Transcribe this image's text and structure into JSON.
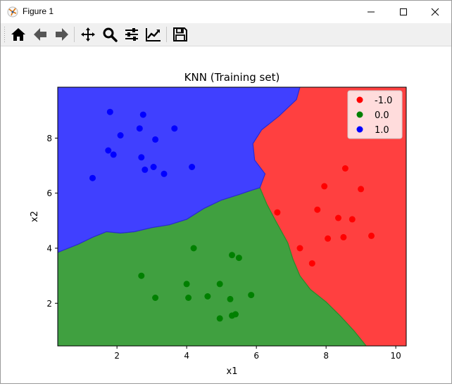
{
  "window": {
    "title": "Figure 1",
    "minimize_icon": "minimize-icon",
    "maximize_icon": "maximize-icon",
    "close_icon": "close-icon"
  },
  "toolbar": {
    "tools": [
      {
        "name": "home-icon",
        "tooltip": "Reset original view"
      },
      {
        "name": "back-arrow-icon",
        "tooltip": "Back"
      },
      {
        "name": "forward-arrow-icon",
        "tooltip": "Forward"
      },
      {
        "name": "pan-icon",
        "tooltip": "Pan"
      },
      {
        "name": "zoom-icon",
        "tooltip": "Zoom"
      },
      {
        "name": "subplots-icon",
        "tooltip": "Configure subplots"
      },
      {
        "name": "edit-curves-icon",
        "tooltip": "Edit axis"
      },
      {
        "name": "save-icon",
        "tooltip": "Save"
      }
    ]
  },
  "chart_data": {
    "type": "scatter",
    "title": "KNN (Training set)",
    "xlabel": "x1",
    "ylabel": "x2",
    "xlim": [
      0.3,
      10.3
    ],
    "ylim": [
      0.45,
      9.85
    ],
    "xticks": [
      2,
      4,
      6,
      8,
      10
    ],
    "yticks": [
      2,
      4,
      6,
      8
    ],
    "grid": false,
    "legend_position": "top-right",
    "colors": {
      "-1.0": "#ff0000",
      "0.0": "#008000",
      "1.0": "#0000ff"
    },
    "region_colors": {
      "-1.0": "#ff4040",
      "0.0": "#40a040",
      "1.0": "#4040ff"
    },
    "decision_regions": {
      "blue_green_boundary": [
        [
          0.3,
          3.85
        ],
        [
          0.5,
          3.95
        ],
        [
          0.9,
          4.15
        ],
        [
          1.3,
          4.4
        ],
        [
          1.7,
          4.6
        ],
        [
          2.1,
          4.55
        ],
        [
          2.5,
          4.6
        ],
        [
          3.0,
          4.75
        ],
        [
          3.5,
          4.85
        ],
        [
          4.0,
          5.05
        ],
        [
          4.5,
          5.45
        ],
        [
          5.0,
          5.75
        ],
        [
          5.5,
          5.95
        ],
        [
          5.85,
          6.1
        ],
        [
          6.1,
          6.2
        ]
      ],
      "blue_red_boundary": [
        [
          6.1,
          6.2
        ],
        [
          6.25,
          6.7
        ],
        [
          5.95,
          7.2
        ],
        [
          5.9,
          7.8
        ],
        [
          6.15,
          8.3
        ],
        [
          6.65,
          8.8
        ],
        [
          7.15,
          9.4
        ],
        [
          7.25,
          9.85
        ]
      ],
      "green_red_boundary": [
        [
          6.1,
          6.2
        ],
        [
          6.3,
          5.6
        ],
        [
          6.55,
          5.0
        ],
        [
          6.9,
          4.2
        ],
        [
          7.05,
          3.6
        ],
        [
          7.25,
          3.0
        ],
        [
          7.55,
          2.5
        ],
        [
          8.0,
          2.05
        ],
        [
          8.4,
          1.55
        ],
        [
          8.8,
          1.0
        ],
        [
          9.15,
          0.45
        ]
      ]
    },
    "series": [
      {
        "name": "-1.0",
        "points": [
          [
            6.6,
            5.3
          ],
          [
            7.25,
            4.0
          ],
          [
            7.6,
            3.45
          ],
          [
            7.75,
            5.4
          ],
          [
            7.95,
            6.25
          ],
          [
            8.05,
            4.35
          ],
          [
            8.35,
            5.1
          ],
          [
            8.5,
            4.4
          ],
          [
            8.55,
            6.9
          ],
          [
            8.75,
            5.05
          ],
          [
            9.0,
            6.15
          ],
          [
            9.3,
            4.45
          ]
        ]
      },
      {
        "name": "0.0",
        "points": [
          [
            2.7,
            3.0
          ],
          [
            3.1,
            2.2
          ],
          [
            4.0,
            2.7
          ],
          [
            4.05,
            2.2
          ],
          [
            4.2,
            4.0
          ],
          [
            4.6,
            2.25
          ],
          [
            4.95,
            2.7
          ],
          [
            4.95,
            1.45
          ],
          [
            5.25,
            2.15
          ],
          [
            5.3,
            3.75
          ],
          [
            5.3,
            1.55
          ],
          [
            5.4,
            1.6
          ],
          [
            5.5,
            3.65
          ],
          [
            5.85,
            2.3
          ]
        ]
      },
      {
        "name": "1.0",
        "points": [
          [
            1.3,
            6.55
          ],
          [
            1.75,
            7.55
          ],
          [
            1.8,
            8.95
          ],
          [
            1.9,
            7.4
          ],
          [
            2.1,
            8.1
          ],
          [
            2.65,
            8.35
          ],
          [
            2.7,
            7.3
          ],
          [
            2.75,
            8.85
          ],
          [
            2.8,
            6.85
          ],
          [
            3.05,
            6.95
          ],
          [
            3.1,
            7.95
          ],
          [
            3.35,
            6.7
          ],
          [
            3.65,
            8.35
          ],
          [
            4.15,
            6.95
          ]
        ]
      }
    ]
  }
}
